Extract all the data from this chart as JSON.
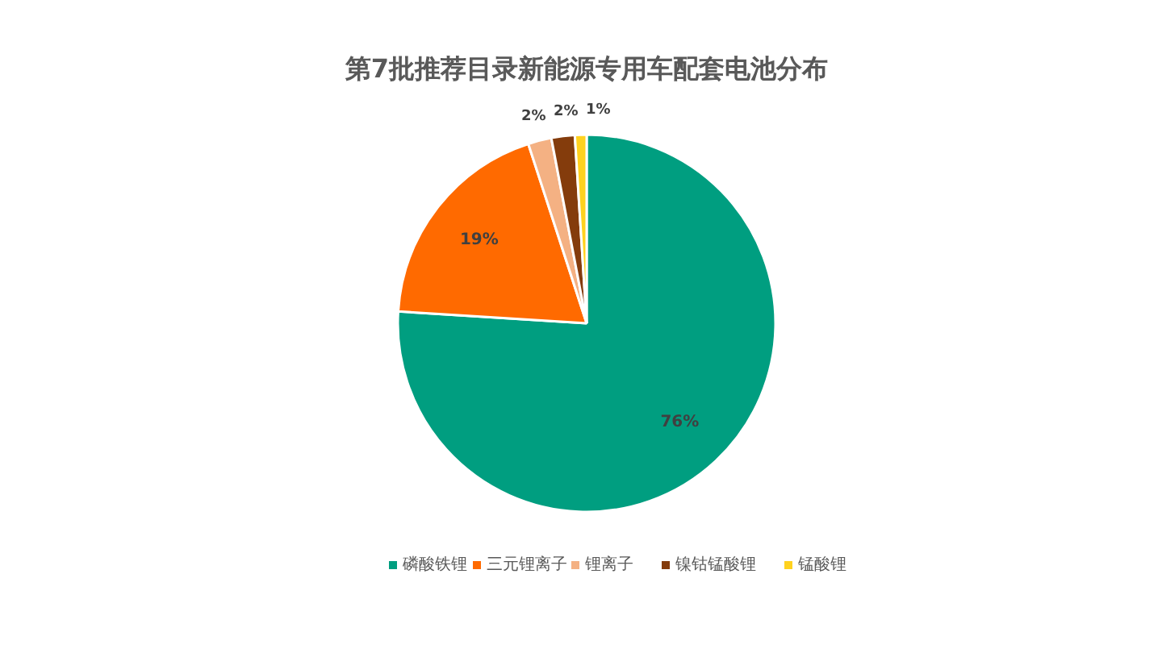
{
  "chart_data": {
    "type": "pie",
    "title": "第7批推荐目录新能源专用车配套电池分布",
    "categories": [
      "磷酸铁锂",
      "三元锂离子",
      "锂离子",
      "镍钴锰酸锂",
      "锰酸锂"
    ],
    "values": [
      76,
      19,
      2,
      2,
      1
    ],
    "value_labels": [
      "76%",
      "19%",
      "2%",
      "2%",
      "1%"
    ],
    "colors": [
      "#009e80",
      "#ff6a00",
      "#f4b183",
      "#843c0c",
      "#ffd21f"
    ],
    "legend": "bottom"
  }
}
